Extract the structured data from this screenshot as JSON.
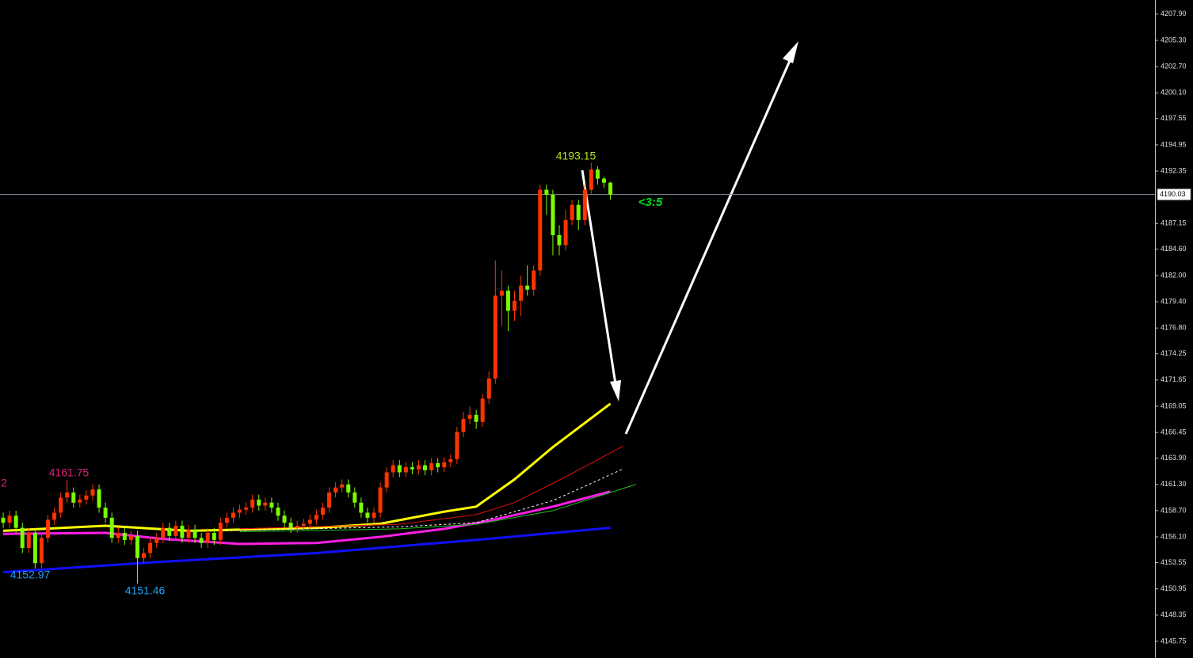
{
  "chart_data": {
    "type": "candlestick",
    "up_color": "#ff3300",
    "down_color": "#7cfc00",
    "xlim": [
      -0.5,
      180.2
    ],
    "ylim": [
      4144.1,
      4209.3
    ],
    "yticks": [
      {
        "value": 4207.9,
        "label": "4207.90"
      },
      {
        "value": 4205.3,
        "label": "4205.30"
      },
      {
        "value": 4202.7,
        "label": "4202.70"
      },
      {
        "value": 4200.1,
        "label": "4200.10"
      },
      {
        "value": 4197.55,
        "label": "4197.55"
      },
      {
        "value": 4194.95,
        "label": "4194.95"
      },
      {
        "value": 4192.35,
        "label": "4192.35"
      },
      {
        "value": 4187.15,
        "label": "4187.15"
      },
      {
        "value": 4184.6,
        "label": "4184.60"
      },
      {
        "value": 4182.0,
        "label": "4182.00"
      },
      {
        "value": 4179.4,
        "label": "4179.40"
      },
      {
        "value": 4176.8,
        "label": "4176.80"
      },
      {
        "value": 4174.25,
        "label": "4174.25"
      },
      {
        "value": 4171.65,
        "label": "4171.65"
      },
      {
        "value": 4169.05,
        "label": "4169.05"
      },
      {
        "value": 4166.45,
        "label": "4166.45"
      },
      {
        "value": 4163.9,
        "label": "4163.90"
      },
      {
        "value": 4161.3,
        "label": "4161.30"
      },
      {
        "value": 4158.7,
        "label": "4158.70"
      },
      {
        "value": 4156.1,
        "label": "4156.10"
      },
      {
        "value": 4153.55,
        "label": "4153.55"
      },
      {
        "value": 4150.95,
        "label": "4150.95"
      },
      {
        "value": 4148.35,
        "label": "4148.35"
      },
      {
        "value": 4145.75,
        "label": "4145.75"
      }
    ],
    "current_price": {
      "value": 4190.03,
      "label": "4190.03"
    },
    "annotations": [
      "4193.15",
      "4161.75",
      "4152.97",
      "4151.46",
      "2",
      "<3:5"
    ],
    "open": [
      4158.0,
      4157.5,
      4158.2,
      4157.0,
      4155.0,
      4156.5,
      4153.5,
      4156.0,
      4157.8,
      4158.5,
      4160.0,
      4160.5,
      4159.5,
      4159.8,
      4160.2,
      4160.8,
      4159.0,
      4158.0,
      4156.0,
      4156.5,
      4155.8,
      4156.2,
      4154.0,
      4154.5,
      4155.5,
      4156.0,
      4157.0,
      4156.2,
      4157.2,
      4156.0,
      4156.8,
      4156.0,
      4155.5,
      4156.5,
      4155.8,
      4157.5,
      4158.0,
      4158.5,
      4158.8,
      4159.0,
      4159.8,
      4159.2,
      4159.5,
      4159.0,
      4158.2,
      4157.5,
      4157.0,
      4157.2,
      4157.4,
      4157.8,
      4158.3,
      4159.0,
      4160.5,
      4161.0,
      4161.3,
      4160.5,
      4159.5,
      4158.5,
      4158.0,
      4158.5,
      4161.0,
      4162.5,
      4163.2,
      4162.5,
      4163.0,
      4162.8,
      4163.2,
      4162.7,
      4163.4,
      4163.0,
      4163.5,
      4163.8,
      4166.5,
      4167.8,
      4168.2,
      4167.5,
      4169.8,
      4171.8,
      4180.0,
      4180.5,
      4178.5,
      4179.5,
      4181.0,
      4180.6,
      4182.5,
      4190.5,
      4190.0,
      4186.0,
      4185.0,
      4187.5,
      4189.0,
      4187.5,
      4190.5,
      4192.5,
      4191.6,
      4191.2
    ],
    "high": [
      4158.5,
      4158.7,
      4158.7,
      4157.5,
      4157.0,
      4157.0,
      4156.5,
      4158.3,
      4159.0,
      4160.5,
      4161.75,
      4161.0,
      4160.3,
      4160.7,
      4161.3,
      4161.3,
      4159.5,
      4158.5,
      4157.0,
      4157.0,
      4156.7,
      4156.7,
      4155.0,
      4156.0,
      4156.5,
      4157.5,
      4157.5,
      4157.7,
      4157.7,
      4157.3,
      4157.3,
      4156.5,
      4157.0,
      4157.0,
      4158.0,
      4158.5,
      4159.0,
      4159.3,
      4159.5,
      4160.3,
      4160.3,
      4160.0,
      4160.0,
      4159.5,
      4158.7,
      4158.0,
      4157.7,
      4157.9,
      4158.3,
      4158.8,
      4159.5,
      4161.0,
      4161.5,
      4161.8,
      4161.8,
      4161.0,
      4160.0,
      4159.0,
      4159.0,
      4161.5,
      4163.0,
      4163.7,
      4163.7,
      4163.5,
      4163.5,
      4163.7,
      4163.7,
      4163.9,
      4163.9,
      4164.0,
      4164.3,
      4167.0,
      4168.5,
      4169.0,
      4168.7,
      4170.3,
      4172.5,
      4183.5,
      4182.5,
      4181.0,
      4180.5,
      4182.0,
      4183.0,
      4183.0,
      4191.0,
      4191.0,
      4190.5,
      4187.0,
      4188.5,
      4189.5,
      4189.5,
      4191.0,
      4193.15,
      4192.8,
      4191.8,
      4191.3
    ],
    "low": [
      4157.0,
      4157.0,
      4156.5,
      4154.5,
      4154.5,
      4152.97,
      4153.0,
      4155.5,
      4157.3,
      4158.0,
      4159.5,
      4159.0,
      4159.0,
      4159.3,
      4159.7,
      4158.5,
      4157.5,
      4155.5,
      4155.5,
      4155.3,
      4155.3,
      4151.46,
      4153.5,
      4154.0,
      4155.0,
      4155.5,
      4155.7,
      4155.7,
      4155.5,
      4155.5,
      4155.5,
      4155.0,
      4155.0,
      4155.3,
      4155.3,
      4157.0,
      4157.5,
      4158.0,
      4158.3,
      4158.5,
      4158.7,
      4158.7,
      4158.5,
      4157.7,
      4157.0,
      4156.5,
      4156.5,
      4156.7,
      4156.9,
      4157.3,
      4157.8,
      4158.5,
      4160.0,
      4160.5,
      4160.0,
      4159.0,
      4158.0,
      4157.5,
      4157.5,
      4158.0,
      4160.5,
      4162.0,
      4162.0,
      4162.0,
      4162.3,
      4162.3,
      4162.2,
      4162.2,
      4162.5,
      4162.5,
      4163.0,
      4163.3,
      4166.0,
      4167.3,
      4166.8,
      4167.0,
      4169.3,
      4171.3,
      4177.0,
      4176.5,
      4177.5,
      4178.0,
      4180.0,
      4180.0,
      4182.0,
      4188.0,
      4184.0,
      4184.0,
      4184.5,
      4187.0,
      4186.5,
      4187.0,
      4190.0,
      4191.0,
      4190.7,
      4189.5
    ],
    "close": [
      4157.5,
      4158.2,
      4157.0,
      4155.0,
      4156.5,
      4153.5,
      4156.0,
      4157.8,
      4158.5,
      4160.0,
      4160.5,
      4159.5,
      4159.8,
      4160.2,
      4160.8,
      4159.0,
      4158.0,
      4156.0,
      4156.5,
      4155.8,
      4156.2,
      4154.0,
      4154.5,
      4155.5,
      4156.0,
      4157.0,
      4156.2,
      4157.2,
      4156.0,
      4156.8,
      4156.0,
      4155.5,
      4156.5,
      4155.8,
      4157.5,
      4158.0,
      4158.5,
      4158.8,
      4159.0,
      4159.8,
      4159.2,
      4159.5,
      4159.0,
      4158.2,
      4157.5,
      4157.0,
      4157.2,
      4157.4,
      4157.8,
      4158.3,
      4159.0,
      4160.5,
      4161.0,
      4161.3,
      4160.5,
      4159.5,
      4158.5,
      4158.0,
      4158.5,
      4161.0,
      4162.5,
      4163.2,
      4162.5,
      4163.0,
      4162.8,
      4163.2,
      4162.7,
      4163.4,
      4163.0,
      4163.5,
      4163.8,
      4166.5,
      4167.8,
      4168.2,
      4167.5,
      4169.8,
      4171.8,
      4180.0,
      4180.5,
      4178.5,
      4179.5,
      4181.0,
      4180.6,
      4182.5,
      4190.5,
      4190.0,
      4186.0,
      4185.0,
      4187.5,
      4189.0,
      4187.5,
      4190.5,
      4192.5,
      4191.6,
      4191.2,
      4190.03
    ],
    "series": [
      {
        "color": "#ffff00",
        "x": [
          0,
          16,
          29,
          49,
          59,
          69,
          74,
          80,
          86,
          95
        ],
        "values": [
          4156.7,
          4157.2,
          4156.7,
          4157.0,
          4157.4,
          4158.6,
          4159.1,
          4161.8,
          4165.0,
          4169.3
        ]
      },
      {
        "color": "#ff1ee6",
        "x": [
          0,
          16,
          25,
          37,
          49,
          59,
          69,
          76,
          86,
          95
        ],
        "values": [
          4156.4,
          4156.5,
          4155.9,
          4155.4,
          4155.5,
          4156.1,
          4156.9,
          4157.7,
          4159.1,
          4160.6
        ]
      },
      {
        "color": "#1010ff",
        "x": [
          0,
          24,
          49,
          74,
          95
        ],
        "values": [
          4152.6,
          4153.6,
          4154.5,
          4155.8,
          4157.0
        ]
      },
      {
        "color": "#e01010",
        "x": [
          37,
          62,
          74,
          80,
          86,
          92,
          97
        ],
        "values": [
          4156.9,
          4157.35,
          4158.3,
          4159.5,
          4161.4,
          4163.4,
          4165.1
        ]
      },
      {
        "color": "#ffffff",
        "dashed": true,
        "x": [
          34,
          62,
          74,
          86,
          92,
          97
        ],
        "values": [
          4156.7,
          4157.1,
          4157.5,
          4159.7,
          4161.4,
          4162.85
        ]
      },
      {
        "color": "#20c020",
        "x": [
          37,
          62,
          74,
          86,
          99
        ],
        "values": [
          4156.6,
          4156.9,
          4157.35,
          4158.7,
          4161.3
        ]
      }
    ]
  }
}
